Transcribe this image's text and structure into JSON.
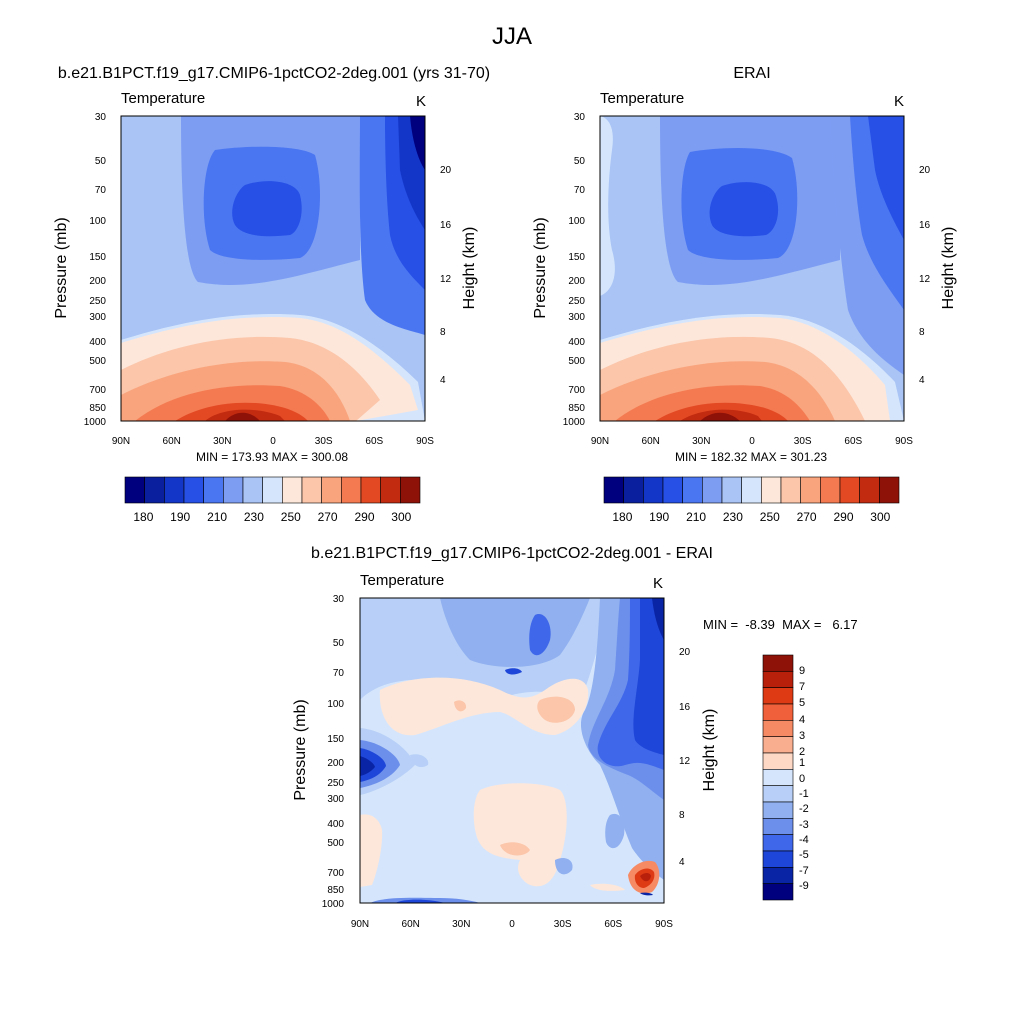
{
  "figure_title": "JJA",
  "chart_data": [
    {
      "type": "heatmap",
      "title": "b.e21.B1PCT.f19_g17.CMIP6-1pctCO2-2deg.001 (yrs 31-70)",
      "left_string": "Temperature",
      "right_string": "K",
      "xlabel": "",
      "ylabel": "Pressure (mb)",
      "ylabel_right": "Height (km)",
      "x_ticks": [
        "90N",
        "60N",
        "30N",
        "0",
        "30S",
        "60S",
        "90S"
      ],
      "y_ticks": [
        "30",
        "50",
        "70",
        "100",
        "150",
        "200",
        "250",
        "300",
        "400",
        "500",
        "700",
        "850",
        "1000"
      ],
      "y_right_ticks": [
        "20",
        "16",
        "12",
        "8",
        "4"
      ],
      "x_range": [
        "90N",
        "90S"
      ],
      "y_range": [
        1000,
        30
      ],
      "y_scale": "log",
      "stats": "MIN = 173.93  MAX = 300.08",
      "legend": {
        "placement": "bottom",
        "labels": [
          "180",
          "190",
          "210",
          "230",
          "250",
          "270",
          "290",
          "300"
        ]
      }
    },
    {
      "type": "heatmap",
      "title": "ERAI",
      "left_string": "Temperature",
      "right_string": "K",
      "xlabel": "",
      "ylabel": "Pressure (mb)",
      "ylabel_right": "Height (km)",
      "x_ticks": [
        "90N",
        "60N",
        "30N",
        "0",
        "30S",
        "60S",
        "90S"
      ],
      "y_ticks": [
        "30",
        "50",
        "70",
        "100",
        "150",
        "200",
        "250",
        "300",
        "400",
        "500",
        "700",
        "850",
        "1000"
      ],
      "y_right_ticks": [
        "20",
        "16",
        "12",
        "8",
        "4"
      ],
      "x_range": [
        "90N",
        "90S"
      ],
      "y_range": [
        1000,
        30
      ],
      "y_scale": "log",
      "stats": "MIN = 182.32  MAX = 301.23",
      "legend": {
        "placement": "bottom",
        "labels": [
          "180",
          "190",
          "210",
          "230",
          "250",
          "270",
          "290",
          "300"
        ]
      }
    },
    {
      "type": "heatmap",
      "title": "b.e21.B1PCT.f19_g17.CMIP6-1pctCO2-2deg.001 - ERAI",
      "left_string": "Temperature",
      "right_string": "K",
      "xlabel": "",
      "ylabel": "Pressure (mb)",
      "ylabel_right": "Height (km)",
      "x_ticks": [
        "90N",
        "60N",
        "30N",
        "0",
        "30S",
        "60S",
        "90S"
      ],
      "y_ticks": [
        "30",
        "50",
        "70",
        "100",
        "150",
        "200",
        "250",
        "300",
        "400",
        "500",
        "700",
        "850",
        "1000"
      ],
      "y_right_ticks": [
        "20",
        "16",
        "12",
        "8",
        "4"
      ],
      "x_range": [
        "90N",
        "90S"
      ],
      "y_range": [
        1000,
        30
      ],
      "y_scale": "log",
      "stats": "MIN =  -8.39  MAX =   6.17",
      "legend": {
        "placement": "right",
        "labels": [
          "9",
          "7",
          "5",
          "4",
          "3",
          "2",
          "1",
          "0",
          "-1",
          "-2",
          "-3",
          "-4",
          "-5",
          "-7",
          "-9"
        ]
      }
    }
  ],
  "colors": {
    "temp_scale": [
      "#00007f",
      "#0a1f9e",
      "#1436c8",
      "#2650e6",
      "#4a76f2",
      "#7d9df3",
      "#a9c4f5",
      "#d5e6fc",
      "#fde7da",
      "#fbc6aa",
      "#f9a47c",
      "#f47a52",
      "#e34a24",
      "#c32b10",
      "#8f1208"
    ],
    "diff_scale": [
      "#8f1208",
      "#b8200c",
      "#de3a14",
      "#f0603a",
      "#f68a64",
      "#f9ae8f",
      "#fdd9c5",
      "#d5e6fc",
      "#b8d0f7",
      "#90b0f0",
      "#6c8fec",
      "#3f67ea",
      "#1e46d8",
      "#0a24a6",
      "#00007f"
    ]
  }
}
